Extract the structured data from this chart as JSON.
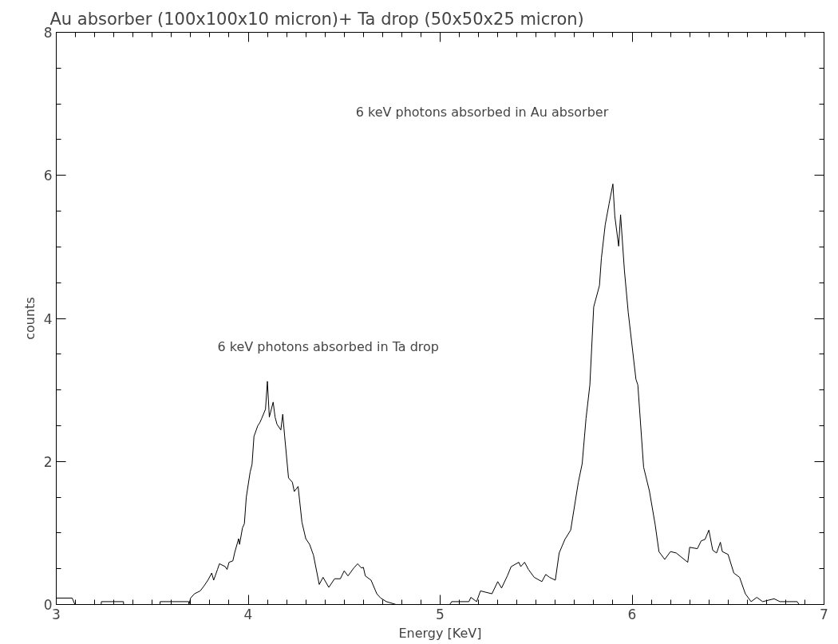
{
  "chart_data": {
    "type": "line",
    "title": "Au absorber (100x100x10 micron)+ Ta drop (50x50x25 micron)",
    "xlabel": "Energy [KeV]",
    "ylabel": "counts",
    "xlim": [
      3,
      7
    ],
    "ylim": [
      0,
      8
    ],
    "xticks": [
      3,
      4,
      5,
      6,
      7
    ],
    "yticks": [
      0,
      2,
      4,
      6,
      8
    ],
    "grid": false,
    "marker": "none",
    "line_style": "solid",
    "annotations": [
      "6 keV photons absorbed in Ta drop",
      "6 keV photons absorbed in Au absorber"
    ],
    "series": [
      {
        "color": "#000000",
        "x": [
          3.0,
          3.083,
          3.097,
          3.234,
          3.235,
          3.35,
          3.351,
          3.54,
          3.541,
          3.69,
          3.691,
          3.7,
          3.72,
          3.75,
          3.77,
          3.79,
          3.81,
          3.82,
          3.84,
          3.85,
          3.88,
          3.89,
          3.9,
          3.92,
          3.93,
          3.95,
          3.955,
          3.97,
          3.98,
          3.99,
          4.01,
          4.02,
          4.03,
          4.05,
          4.06,
          4.07,
          4.09,
          4.1,
          4.11,
          4.13,
          4.14,
          4.15,
          4.17,
          4.18,
          4.19,
          4.21,
          4.23,
          4.24,
          4.26,
          4.28,
          4.3,
          4.32,
          4.34,
          4.37,
          4.39,
          4.42,
          4.45,
          4.48,
          4.5,
          4.52,
          4.55,
          4.57,
          4.59,
          4.6,
          4.61,
          4.64,
          4.67,
          4.69,
          4.72,
          4.77,
          5.05,
          5.06,
          5.15,
          5.16,
          5.19,
          5.21,
          5.27,
          5.3,
          5.32,
          5.35,
          5.37,
          5.41,
          5.42,
          5.44,
          5.46,
          5.49,
          5.53,
          5.55,
          5.57,
          5.6,
          5.62,
          5.65,
          5.68,
          5.72,
          5.74,
          5.76,
          5.78,
          5.8,
          5.83,
          5.84,
          5.86,
          5.88,
          5.9,
          5.91,
          5.93,
          5.94,
          5.96,
          5.98,
          6.02,
          6.03,
          6.06,
          6.09,
          6.12,
          6.14,
          6.17,
          6.2,
          6.23,
          6.29,
          6.3,
          6.34,
          6.36,
          6.38,
          6.4,
          6.42,
          6.44,
          6.46,
          6.47,
          6.5,
          6.53,
          6.56,
          6.59,
          6.62,
          6.65,
          6.68,
          6.74,
          6.77,
          6.86,
          6.87,
          7.0
        ],
        "values": [
          0.09,
          0.09,
          0,
          0,
          0.04,
          0.04,
          0,
          0,
          0.04,
          0.04,
          0,
          0.09,
          0.15,
          0.19,
          0.26,
          0.34,
          0.44,
          0.34,
          0.49,
          0.57,
          0.53,
          0.49,
          0.59,
          0.61,
          0.73,
          0.92,
          0.84,
          1.07,
          1.13,
          1.5,
          1.85,
          1.96,
          2.35,
          2.5,
          2.54,
          2.6,
          2.73,
          3.12,
          2.62,
          2.83,
          2.62,
          2.52,
          2.44,
          2.66,
          2.35,
          1.77,
          1.71,
          1.58,
          1.65,
          1.15,
          0.92,
          0.84,
          0.69,
          0.28,
          0.38,
          0.24,
          0.36,
          0.36,
          0.47,
          0.4,
          0.51,
          0.57,
          0.51,
          0.52,
          0.4,
          0.34,
          0.15,
          0.09,
          0.04,
          0,
          0,
          0.04,
          0.04,
          0.1,
          0.04,
          0.19,
          0.15,
          0.32,
          0.23,
          0.4,
          0.53,
          0.59,
          0.53,
          0.59,
          0.49,
          0.38,
          0.32,
          0.42,
          0.38,
          0.34,
          0.72,
          0.91,
          1.04,
          1.71,
          1.97,
          2.6,
          3.07,
          4.16,
          4.46,
          4.84,
          5.31,
          5.6,
          5.88,
          5.43,
          5.01,
          5.45,
          4.67,
          4.08,
          3.15,
          3.07,
          1.92,
          1.59,
          1.12,
          0.74,
          0.63,
          0.74,
          0.72,
          0.59,
          0.8,
          0.78,
          0.89,
          0.91,
          1.04,
          0.76,
          0.72,
          0.87,
          0.74,
          0.7,
          0.44,
          0.38,
          0.15,
          0.04,
          0.1,
          0.04,
          0.08,
          0.04,
          0.04,
          0,
          0
        ]
      }
    ]
  }
}
